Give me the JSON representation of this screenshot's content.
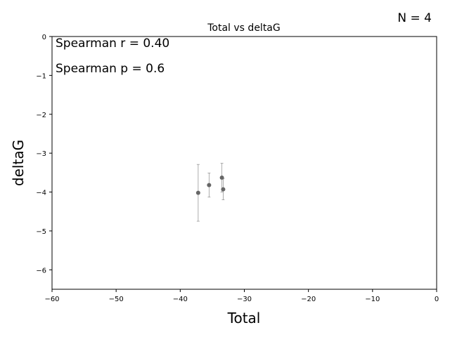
{
  "chart_data": {
    "type": "scatter",
    "title": "Total vs deltaG",
    "xlabel": "Total",
    "ylabel": "deltaG",
    "xlim": [
      -60,
      0
    ],
    "ylim": [
      -6.5,
      0
    ],
    "xticks": [
      -60,
      -50,
      -40,
      -30,
      -20,
      -10,
      0
    ],
    "yticks": [
      0,
      -1,
      -2,
      -3,
      -4,
      -5,
      -6
    ],
    "xtick_labels": [
      "−60",
      "−50",
      "−40",
      "−30",
      "−20",
      "−10",
      "0"
    ],
    "ytick_labels": [
      "0",
      "−1",
      "−2",
      "−3",
      "−4",
      "−5",
      "−6"
    ],
    "grid": false,
    "point_color": "#666666",
    "errorbar_color": "#999999",
    "points": [
      {
        "x": -37.2,
        "y": -4.02,
        "yerr": 0.73
      },
      {
        "x": -35.5,
        "y": -3.82,
        "yerr": 0.31
      },
      {
        "x": -33.5,
        "y": -3.63,
        "yerr": 0.37
      },
      {
        "x": -33.3,
        "y": -3.93,
        "yerr": 0.27
      }
    ],
    "annotations": [
      "Spearman r = 0.40",
      "Spearman p = 0.6"
    ],
    "n_label": "N = 4"
  }
}
